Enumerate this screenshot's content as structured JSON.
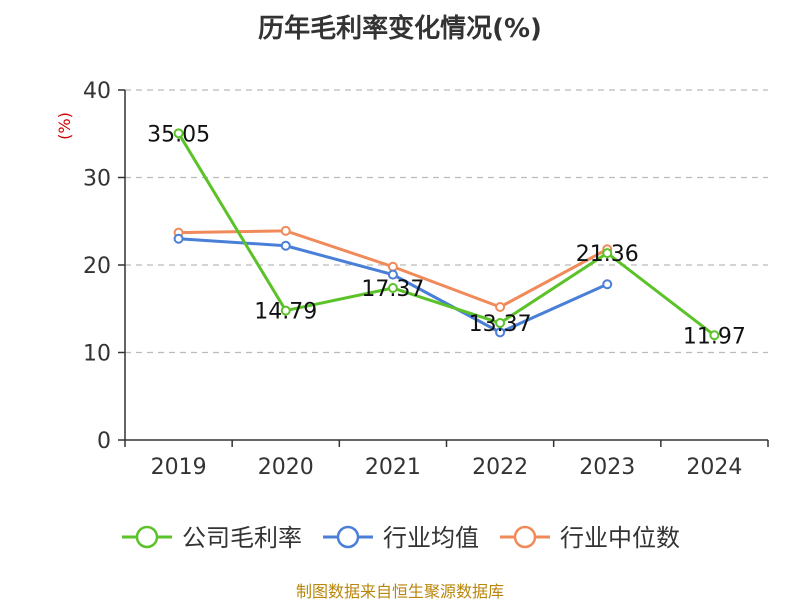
{
  "chart_data": {
    "type": "line",
    "title": "历年毛利率变化情况(%)",
    "ylabel": "(%)",
    "xlabel": "",
    "categories": [
      "2019",
      "2020",
      "2021",
      "2022",
      "2023",
      "2024"
    ],
    "ylim": [
      0,
      40
    ],
    "yticks": [
      0,
      10,
      20,
      30,
      40
    ],
    "grid": true,
    "legend_position": "bottom",
    "series": [
      {
        "name": "公司毛利率",
        "color": "#5cc22a",
        "values": [
          35.05,
          14.79,
          17.37,
          13.37,
          21.36,
          11.97
        ],
        "labels": [
          "35.05",
          "14.79",
          "17.37",
          "13.37",
          "21.36",
          "11.97"
        ]
      },
      {
        "name": "行业均值",
        "color": "#4a7fd8",
        "values": [
          23.0,
          22.2,
          18.9,
          12.3,
          17.8,
          null
        ]
      },
      {
        "name": "行业中位数",
        "color": "#f08a5a",
        "values": [
          23.7,
          23.9,
          19.8,
          15.2,
          21.8,
          null
        ]
      }
    ],
    "source": "制图数据来自恒生聚源数据库"
  }
}
